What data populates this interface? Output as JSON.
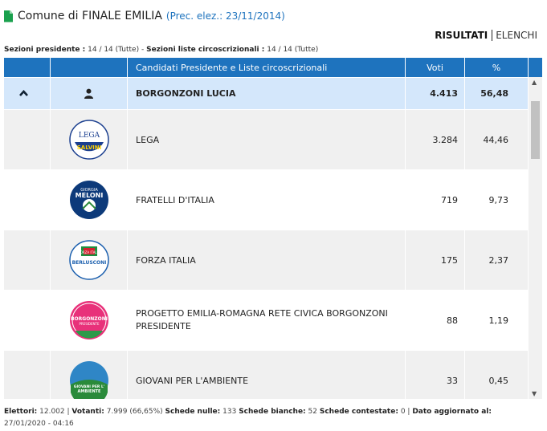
{
  "header": {
    "title": "Comune di FINALE EMILIA",
    "prev": "(Prec. elez.: 23/11/2014)"
  },
  "tabs": {
    "active": "RISULTATI",
    "other": "ELENCHI"
  },
  "sezioni": {
    "pres_label": "Sezioni presidente :",
    "pres_value": "14 / 14 (Tutte)",
    "sep": " - ",
    "liste_label": "Sezioni liste circoscrizionali :",
    "liste_value": "14 / 14 (Tutte)"
  },
  "table": {
    "headers": {
      "candidates": "Candidati Presidente e Liste circoscrizionali",
      "votes": "Voti",
      "pct": "%"
    },
    "candidate": {
      "name": "BORGONZONI LUCIA",
      "votes": "4.413",
      "pct": "56,48"
    },
    "lists": [
      {
        "name": "LEGA",
        "votes": "3.284",
        "pct": "44,46",
        "logo": "lega-logo",
        "logo_text_top": "LEGA",
        "logo_text_bottom": "SALVINI"
      },
      {
        "name": "FRATELLI D'ITALIA",
        "votes": "719",
        "pct": "9,73",
        "logo": "fratelli-italia-logo",
        "logo_text_top": "GIORGIA",
        "logo_text_bottom": "MELONI"
      },
      {
        "name": "FORZA ITALIA",
        "votes": "175",
        "pct": "2,37",
        "logo": "forza-italia-logo",
        "logo_text_top": "FORZA ITALIA",
        "logo_text_bottom": "BERLUSCONI"
      },
      {
        "name": "PROGETTO EMILIA-ROMAGNA RETE CIVICA BORGONZONI PRESIDENTE",
        "votes": "88",
        "pct": "1,19",
        "logo": "progetto-emilia-romagna-logo",
        "logo_text_top": "BORGONZONI",
        "logo_text_bottom": "PRESIDENTE"
      },
      {
        "name": "GIOVANI PER L'AMBIENTE",
        "votes": "33",
        "pct": "0,45",
        "logo": "giovani-ambiente-logo",
        "logo_text_top": "GIOVANI PER L'",
        "logo_text_bottom": "AMBIENTE"
      }
    ]
  },
  "footer": {
    "elettori_label": "Elettori:",
    "elettori_value": "12.002",
    "votanti_label": "Votanti:",
    "votanti_value": "7.999 (66,65%)",
    "nulle_label": "Schede nulle:",
    "nulle_value": "133",
    "bianche_label": "Schede bianche:",
    "bianche_value": "52",
    "contestate_label": "Schede contestate:",
    "contestate_value": "0",
    "agg_label": "Dato aggiornato al:",
    "agg_value": "27/01/2020 - 04:16"
  },
  "colors": {
    "accent": "#1e73be",
    "candidate_row": "#d4e7fb",
    "green_icon": "#1aa04d"
  }
}
